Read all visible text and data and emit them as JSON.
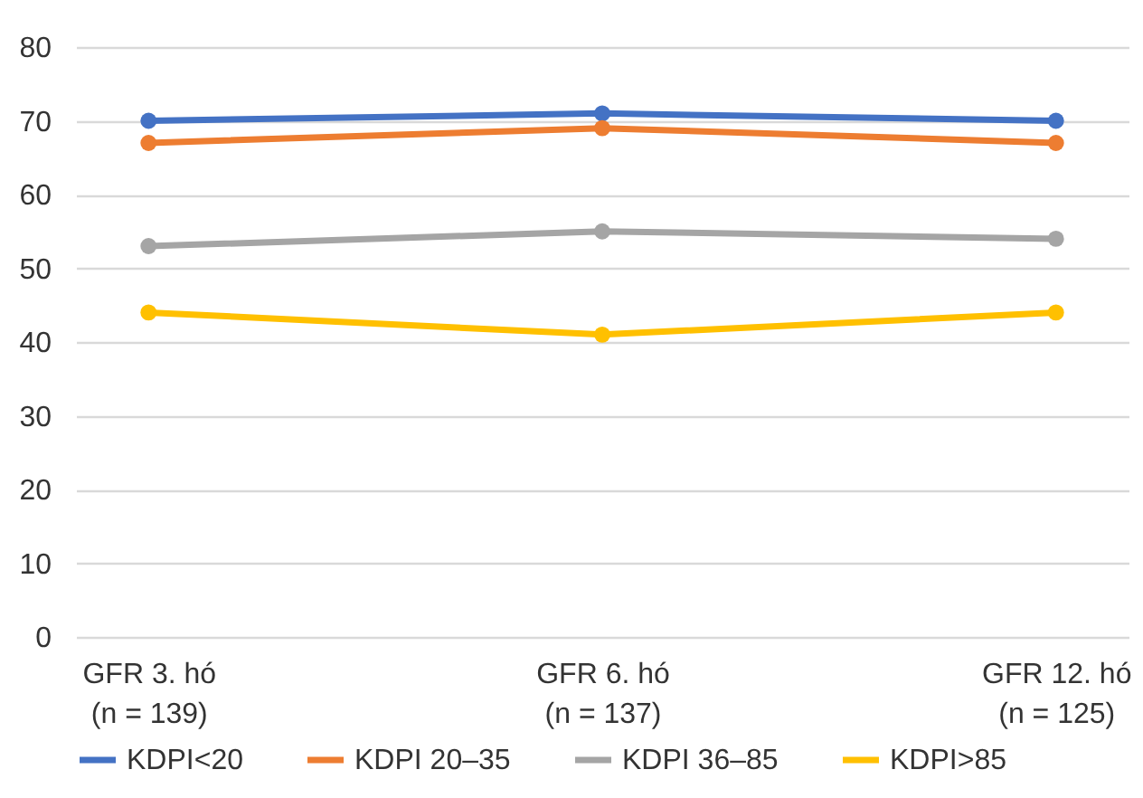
{
  "chart_data": {
    "type": "line",
    "categories": [
      "GFR 3. hó\n(n = 139)",
      "GFR 6. hó\n(n = 137)",
      "GFR 12. hó\n(n = 125)"
    ],
    "series": [
      {
        "name": "KDPI<20",
        "color": "#4472c4",
        "values": [
          70,
          71,
          70
        ]
      },
      {
        "name": "KDPI 20–35",
        "color": "#ed7d31",
        "values": [
          67,
          69,
          67
        ]
      },
      {
        "name": "KDPI 36–85",
        "color": "#a5a5a5",
        "values": [
          53,
          55,
          54
        ]
      },
      {
        "name": "KDPI>85",
        "color": "#ffc000",
        "values": [
          44,
          41,
          44
        ]
      }
    ],
    "ylim": [
      0,
      80
    ],
    "yticks": [
      0,
      10,
      20,
      30,
      40,
      50,
      60,
      70,
      80
    ],
    "grid": "y",
    "legend": "bottom",
    "marker": "circle",
    "line_style": "solid"
  }
}
